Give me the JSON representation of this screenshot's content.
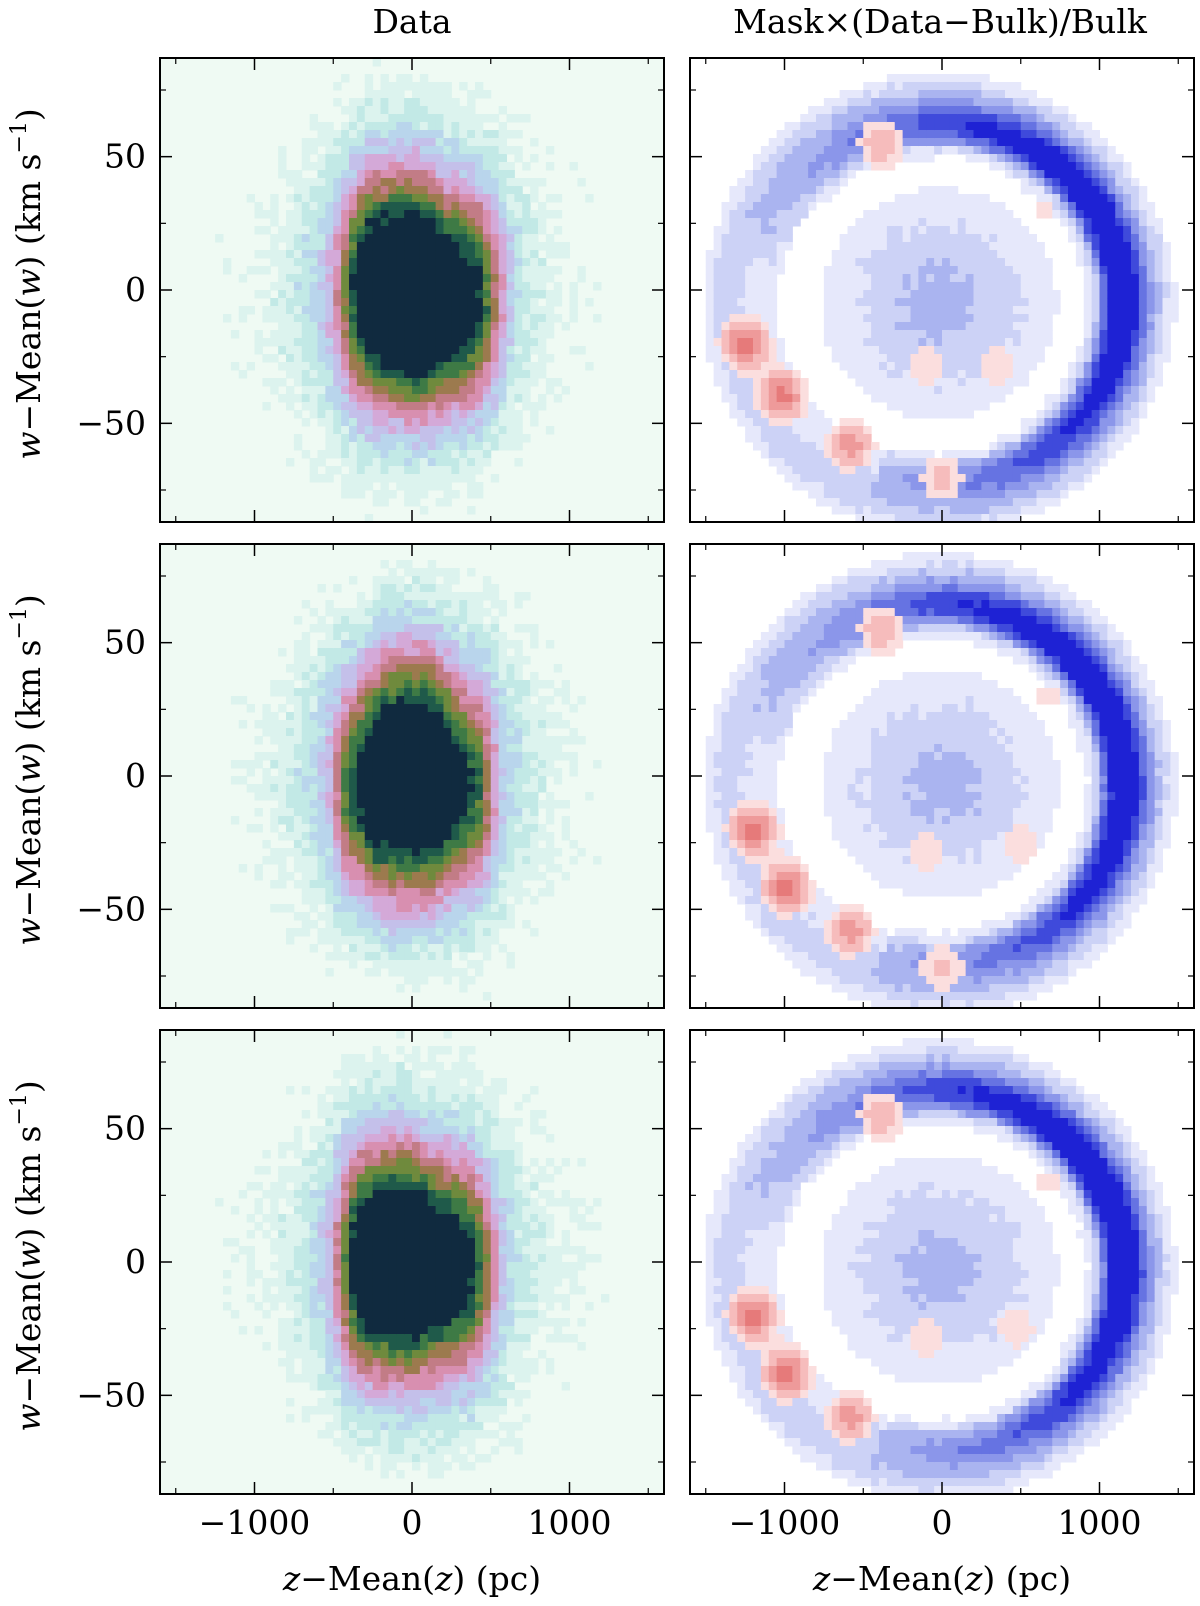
{
  "figure": {
    "column_titles": [
      "Data",
      "Mask×(Data−Bulk)/Bulk"
    ],
    "xlabel": {
      "var": "z",
      "rest": "−Mean(",
      "var2": "z",
      "tail": ") (pc)"
    },
    "ylabel": {
      "var": "w",
      "rest": "−Mean(",
      "var2": "w",
      "tail": ") (km s",
      "sup": "−1",
      "end": ")"
    }
  },
  "colors": {
    "data_background": "#effaf3",
    "data_levels": [
      "#effaf3",
      "#dcf3ee",
      "#c2e9e6",
      "#b9d5ec",
      "#c4c0ea",
      "#d4a9d8",
      "#d88fb0",
      "#c27c86",
      "#9c7a4e",
      "#6f8a3d",
      "#3e7a45",
      "#1f5a4a",
      "#102a3f"
    ],
    "residual_negative": [
      "#ffffff",
      "#e6e8fb",
      "#ccd2f6",
      "#aab4f0",
      "#8b96ea",
      "#6673e2",
      "#3f4adb",
      "#1e22d4"
    ],
    "residual_positive": [
      "#ffffff",
      "#fbdede",
      "#f6bcbc",
      "#ee9a9a",
      "#e67a7a"
    ]
  },
  "chart_data": [
    {
      "type": "heatmap",
      "title": "Data",
      "panel": "row-1-left",
      "xlabel": "",
      "ylabel": "w−Mean(w) (km s−1)",
      "xlim": [
        -1600,
        1600
      ],
      "ylim": [
        -87,
        87
      ],
      "xticks": [
        -1000,
        0,
        1000
      ],
      "yticks": [
        -50,
        0,
        50
      ],
      "ytick_labels": [
        "−50",
        "0",
        "50"
      ],
      "blobs": [
        {
          "x": -150,
          "y": 0,
          "sx": 230,
          "sy": 28,
          "amp": 1.0
        },
        {
          "x": 260,
          "y": -5,
          "sx": 240,
          "sy": 26,
          "amp": 0.82
        },
        {
          "x": 0,
          "y": 0,
          "sx": 520,
          "sy": 42,
          "amp": 0.28
        }
      ]
    },
    {
      "type": "heatmap",
      "title": "Mask×(Data−Bulk)/Bulk",
      "panel": "row-1-right",
      "xlim": [
        -1600,
        1600
      ],
      "ylim": [
        -87,
        87
      ],
      "xticks": [
        -1000,
        0,
        1000
      ],
      "yticks": [
        -50,
        0,
        50
      ],
      "ring": {
        "cx": -20,
        "cy": -5,
        "r": 1250,
        "ry": 72,
        "width": 0.18
      },
      "positive_blobs": [
        {
          "x": -1250,
          "y": -20,
          "amp": 0.9
        },
        {
          "x": -1020,
          "y": -40,
          "amp": 0.9
        },
        {
          "x": -580,
          "y": -58,
          "amp": 0.7
        },
        {
          "x": -380,
          "y": 55,
          "amp": 0.6
        },
        {
          "x": 0,
          "y": -70,
          "amp": 0.5
        },
        {
          "x": -100,
          "y": -28,
          "amp": 0.4
        },
        {
          "x": 350,
          "y": -28,
          "amp": 0.4
        },
        {
          "x": 650,
          "y": 30,
          "amp": 0.3
        }
      ]
    },
    {
      "type": "heatmap",
      "title": "",
      "panel": "row-2-left",
      "xlim": [
        -1600,
        1600
      ],
      "ylim": [
        -87,
        87
      ],
      "xticks": [
        -1000,
        0,
        1000
      ],
      "yticks": [
        -50,
        0,
        50
      ],
      "blobs": [
        {
          "x": -20,
          "y": 0,
          "sx": 200,
          "sy": 30,
          "amp": 1.0
        },
        {
          "x": -330,
          "y": -5,
          "sx": 130,
          "sy": 25,
          "amp": 0.55
        },
        {
          "x": 330,
          "y": -5,
          "sx": 150,
          "sy": 25,
          "amp": 0.6
        },
        {
          "x": 0,
          "y": 0,
          "sx": 520,
          "sy": 42,
          "amp": 0.28
        }
      ]
    },
    {
      "type": "heatmap",
      "title": "",
      "panel": "row-2-right",
      "xlim": [
        -1600,
        1600
      ],
      "ylim": [
        -87,
        87
      ],
      "xticks": [
        -1000,
        0,
        1000
      ],
      "yticks": [
        -50,
        0,
        50
      ],
      "ring": {
        "cx": -10,
        "cy": -3,
        "r": 1250,
        "ry": 72,
        "width": 0.18
      },
      "positive_blobs": [
        {
          "x": -1200,
          "y": -20,
          "amp": 0.9
        },
        {
          "x": -990,
          "y": -42,
          "amp": 0.9
        },
        {
          "x": -580,
          "y": -58,
          "amp": 0.7
        },
        {
          "x": -380,
          "y": 55,
          "amp": 0.6
        },
        {
          "x": 0,
          "y": -72,
          "amp": 0.5
        },
        {
          "x": -100,
          "y": -28,
          "amp": 0.4
        },
        {
          "x": 500,
          "y": -25,
          "amp": 0.4
        },
        {
          "x": 680,
          "y": 30,
          "amp": 0.3
        }
      ]
    },
    {
      "type": "heatmap",
      "title": "",
      "panel": "row-3-left",
      "xlabel": "z−Mean(z) (pc)",
      "xlim": [
        -1600,
        1600
      ],
      "ylim": [
        -87,
        87
      ],
      "xticks": [
        -1000,
        0,
        1000
      ],
      "yticks": [
        -50,
        0,
        50
      ],
      "xtick_labels": [
        "−1000",
        "0",
        "1000"
      ],
      "blobs": [
        {
          "x": -180,
          "y": 0,
          "sx": 220,
          "sy": 28,
          "amp": 1.0
        },
        {
          "x": 240,
          "y": -3,
          "sx": 220,
          "sy": 26,
          "amp": 0.75
        },
        {
          "x": 0,
          "y": 0,
          "sx": 500,
          "sy": 42,
          "amp": 0.28
        }
      ]
    },
    {
      "type": "heatmap",
      "title": "",
      "panel": "row-3-right",
      "xlabel": "z−Mean(z) (pc)",
      "xlim": [
        -1600,
        1600
      ],
      "ylim": [
        -87,
        87
      ],
      "xticks": [
        -1000,
        0,
        1000
      ],
      "yticks": [
        -50,
        0,
        50
      ],
      "ring": {
        "cx": -15,
        "cy": -3,
        "r": 1250,
        "ry": 72,
        "width": 0.18
      },
      "positive_blobs": [
        {
          "x": -1200,
          "y": -20,
          "amp": 0.9
        },
        {
          "x": -990,
          "y": -42,
          "amp": 0.9
        },
        {
          "x": -580,
          "y": -58,
          "amp": 0.7
        },
        {
          "x": -380,
          "y": 55,
          "amp": 0.6
        },
        {
          "x": -100,
          "y": -28,
          "amp": 0.4
        },
        {
          "x": 470,
          "y": -25,
          "amp": 0.4
        },
        {
          "x": 680,
          "y": 30,
          "amp": 0.3
        }
      ]
    }
  ],
  "axes": {
    "xtick_labels": [
      "−1000",
      "0",
      "1000"
    ],
    "ytick_labels": [
      "−50",
      "0",
      "50"
    ]
  }
}
